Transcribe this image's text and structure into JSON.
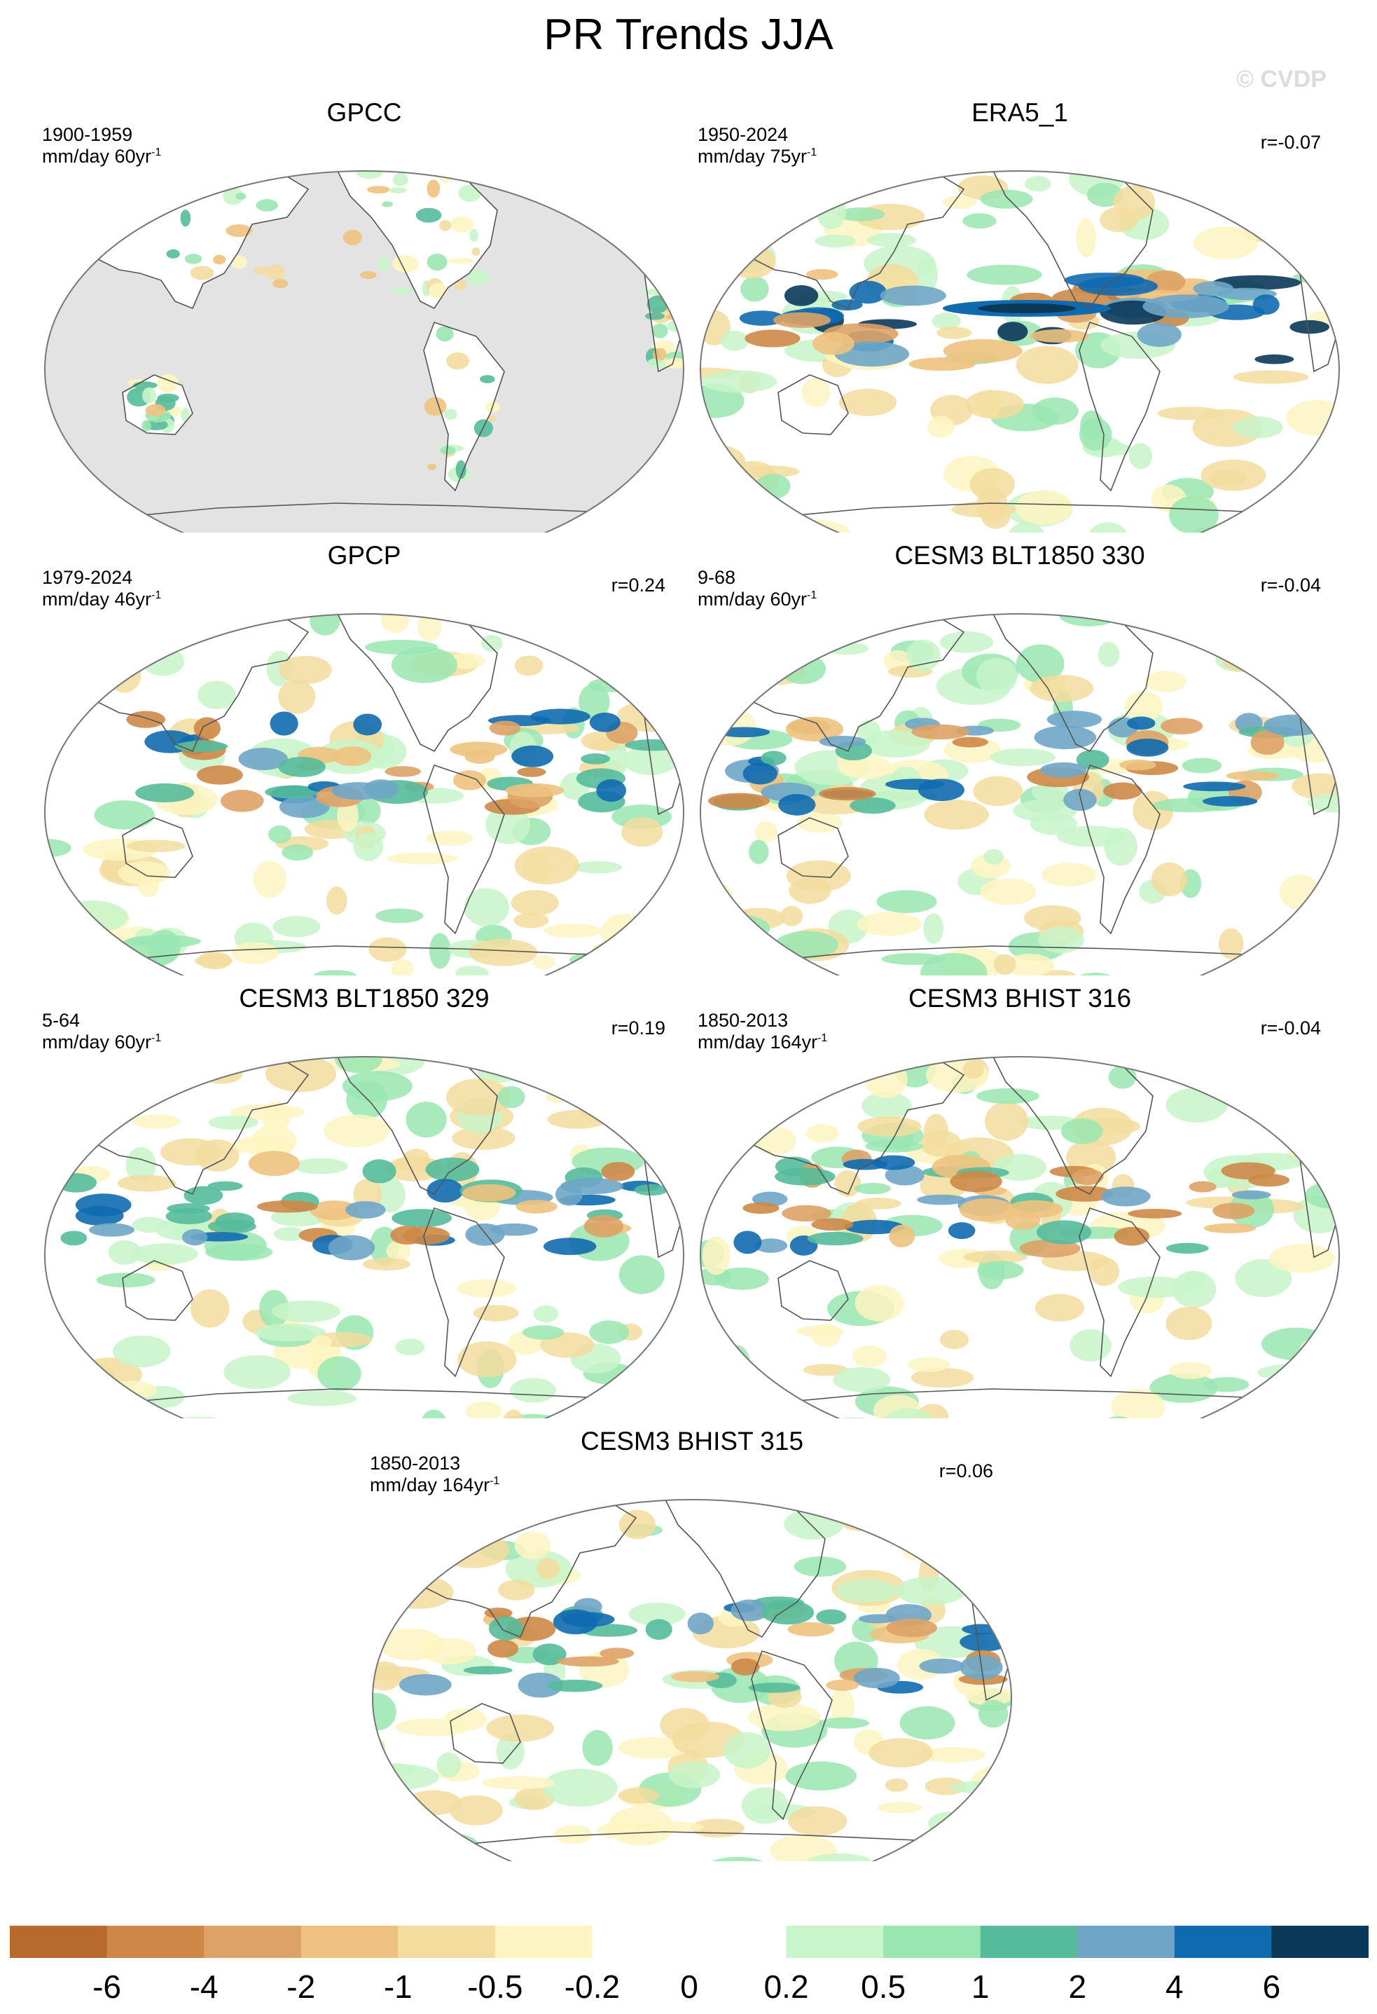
{
  "title": "PR Trends JJA",
  "watermark": "© CVDP",
  "panels": [
    {
      "name": "GPCC",
      "period": "1900-1959",
      "units": "mm/day 60yr",
      "units_sup": "-1",
      "corr": "",
      "land_only": true,
      "palette_bias": "mixed"
    },
    {
      "name": "ERA5_1",
      "period": "1950-2024",
      "units": "mm/day 75yr",
      "units_sup": "-1",
      "corr": "r=-0.07",
      "land_only": false,
      "palette_bias": "strong"
    },
    {
      "name": "GPCP",
      "period": "1979-2024",
      "units": "mm/day 46yr",
      "units_sup": "-1",
      "corr": "r=0.24",
      "land_only": false,
      "palette_bias": "mixed"
    },
    {
      "name": "CESM3 BLT1850 330",
      "period": "9-68",
      "units": "mm/day 60yr",
      "units_sup": "-1",
      "corr": "r=-0.04",
      "land_only": false,
      "palette_bias": "mixed"
    },
    {
      "name": "CESM3 BLT1850 329",
      "period": "5-64",
      "units": "mm/day 60yr",
      "units_sup": "-1",
      "corr": "r=0.19",
      "land_only": false,
      "palette_bias": "mixed"
    },
    {
      "name": "CESM3 BHIST 316",
      "period": "1850-2013",
      "units": "mm/day 164yr",
      "units_sup": "-1",
      "corr": "r=-0.04",
      "land_only": false,
      "palette_bias": "mixed"
    },
    {
      "name": "CESM3 BHIST 315",
      "period": "1850-2013",
      "units": "mm/day 164yr",
      "units_sup": "-1",
      "corr": "r=0.06",
      "land_only": false,
      "palette_bias": "mixed"
    }
  ],
  "colorbar": {
    "colors": [
      "#b8692e",
      "#cd8847",
      "#dda266",
      "#eec27e",
      "#f3dc9e",
      "#fdf5c1",
      "#ffffff",
      "#ffffff",
      "#c8f5c9",
      "#9ae6b2",
      "#55bb9b",
      "#6fa6c8",
      "#0f6ab0",
      "#0a3859"
    ],
    "labels": [
      "-6",
      "-4",
      "-2",
      "-1",
      "-0.5",
      "-0.2",
      "0",
      "0.2",
      "0.5",
      "1",
      "2",
      "4",
      "6"
    ]
  },
  "map_style": {
    "missing_fill": "#e3e3e3",
    "coast_stroke": "#555555",
    "frame_stroke": "#777777"
  }
}
